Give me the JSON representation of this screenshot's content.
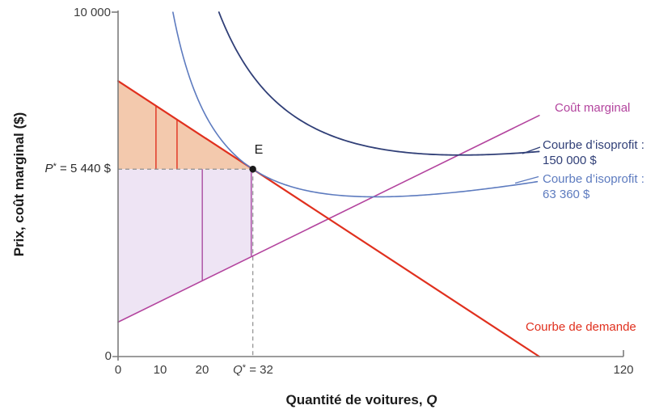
{
  "labels": {
    "y_axis": {
      "title": "Prix, coût marginal ($)",
      "tick_top": "10 000",
      "tick_zero": "0"
    },
    "x_axis": {
      "title_prefix": "Quantité de voitures, ",
      "title_var": "Q",
      "tick_0": "0",
      "tick_10": "10",
      "tick_20": "20",
      "tick_qstar_var": "Q",
      "tick_qstar_star": "*",
      "tick_qstar_rest": " = 32",
      "tick_120": "120"
    },
    "pstar": {
      "var": "P",
      "star": "*",
      "rest": " = 5 440 $"
    },
    "point_e": "E",
    "legend": {
      "marginal_cost": "Coût marginal",
      "isoprofit_high_1": "Courbe d’isoprofit :",
      "isoprofit_high_2": "150 000 $",
      "isoprofit_low_1": "Courbe d’isoprofit :",
      "isoprofit_low_2": "63 360 $",
      "demand": "Courbe de demande"
    }
  },
  "colors": {
    "demand": "#e0301e",
    "marginal_cost": "#b3449e",
    "isoprofit_high": "#303f77",
    "isoprofit_low": "#5d7bbf",
    "consumer_surplus_fill": "#f3c9ad",
    "producer_surplus_fill": "#eee4f4",
    "producer_divider": "#a94da2",
    "axis": "#7c7c7c",
    "dashed": "#8f8f8f",
    "tick_text": "#3d3d3d"
  },
  "chart_data": {
    "type": "line",
    "title": "",
    "xlabel": "Quantité de voitures, Q",
    "ylabel": "Prix, coût marginal ($)",
    "xlim": [
      0,
      120
    ],
    "ylim": [
      0,
      10000
    ],
    "x_tick_values": [
      0,
      10,
      20,
      32,
      120
    ],
    "y_tick_values": [
      0,
      10000
    ],
    "grid": false,
    "legend_position": "right-outside",
    "equilibrium": {
      "label": "E",
      "Q": 32,
      "P": 5440,
      "P_label": "P* = 5 440 $",
      "Q_label": "Q* = 32"
    },
    "series": [
      {
        "id": "demand",
        "name": "Courbe de demande",
        "kind": "linear",
        "intercept": 8000,
        "slope": -80,
        "q_range": [
          0,
          100
        ],
        "color": "#e0301e",
        "width": 2.2
      },
      {
        "id": "marginal-cost",
        "name": "Coût marginal",
        "kind": "linear",
        "intercept": 1000,
        "slope": 60,
        "q_range": [
          0,
          100
        ],
        "color": "#b3449e",
        "width": 1.6
      },
      {
        "id": "isoprofit-150000",
        "name": "Courbe d’isoprofit : 150 000 $",
        "kind": "isoprofit",
        "a": 960,
        "b": 30,
        "k": 199280,
        "q_range": [
          23.95,
          100
        ],
        "color": "#303f77",
        "width": 1.8
      },
      {
        "id": "isoprofit-63360",
        "name": "Courbe d’isoprofit : 63 360 $",
        "kind": "isoprofit",
        "a": 960,
        "b": 30,
        "k": 112640,
        "q_range": [
          13.03,
          100
        ],
        "color": "#5d7bbf",
        "width": 1.6
      }
    ],
    "regions": [
      {
        "id": "consumer-surplus",
        "fill": "#f3c9ad",
        "between": [
          "demand",
          "price"
        ],
        "q_range": [
          0,
          32
        ],
        "divider_lines_Q": [
          9,
          14
        ],
        "divider_color": "#e0301e"
      },
      {
        "id": "producer-surplus",
        "fill": "#eee4f4",
        "between": [
          "price",
          "marginal-cost"
        ],
        "q_range": [
          0,
          32
        ],
        "divider_lines_Q": [
          20,
          32
        ],
        "divider_color": "#a94da2"
      }
    ],
    "dashed_guides": [
      {
        "id": "pstar-guide",
        "from_QP": [
          0,
          5440
        ],
        "to_QP": [
          32,
          5440
        ]
      },
      {
        "id": "qstar-guide",
        "from_QP": [
          32,
          5440
        ],
        "to_QP": [
          32,
          0
        ]
      }
    ]
  }
}
